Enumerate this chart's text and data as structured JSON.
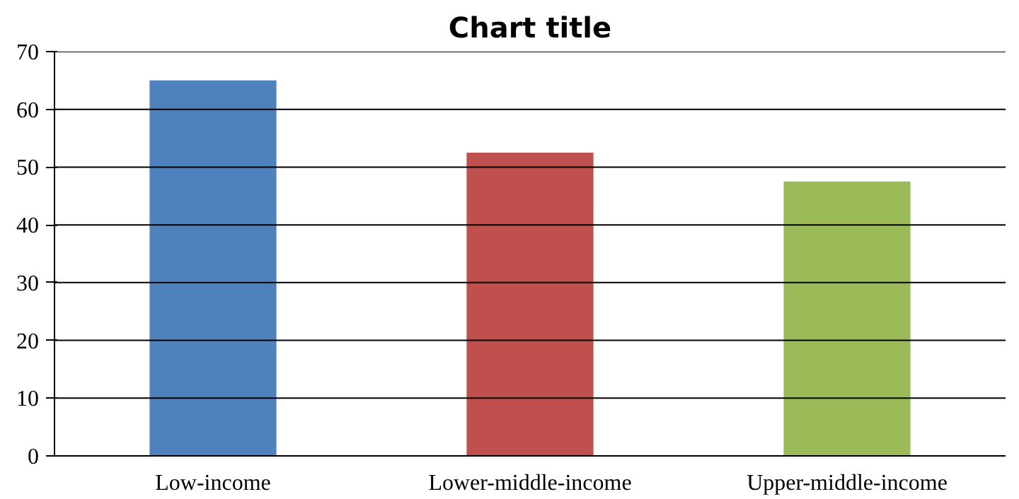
{
  "chart_data": {
    "type": "bar",
    "title": "Chart title",
    "categories": [
      "Low-income",
      "Lower-middle-income",
      "Upper-middle-income"
    ],
    "values": [
      65,
      52.5,
      47.5
    ],
    "colors": [
      "#4f81bd",
      "#c0504d",
      "#9bbb59"
    ],
    "ylim": [
      0,
      70
    ],
    "yticks": [
      0,
      10,
      20,
      30,
      40,
      50,
      60,
      70
    ],
    "grid": "y"
  }
}
